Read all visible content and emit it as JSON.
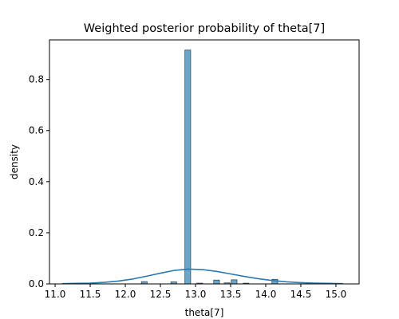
{
  "chart_data": {
    "type": "bar",
    "title": "Weighted posterior probability of theta[7]",
    "xlabel": "theta[7]",
    "ylabel": "density",
    "xlim": [
      10.92,
      15.33
    ],
    "ylim": [
      0,
      0.955
    ],
    "xticks": [
      "11.0",
      "11.5",
      "12.0",
      "12.5",
      "13.0",
      "13.5",
      "14.0",
      "14.5",
      "15.0"
    ],
    "yticks": [
      "0.0",
      "0.2",
      "0.4",
      "0.6",
      "0.8"
    ],
    "grid": false,
    "bar_color": "#6ea6c9",
    "bar_edge_color": "#1f3b4d",
    "line_color": "#2a7ab0",
    "bin_width": 0.082,
    "bars": [
      {
        "x": 12.27,
        "value": 0.009
      },
      {
        "x": 12.69,
        "value": 0.008
      },
      {
        "x": 12.89,
        "value": 0.915
      },
      {
        "x": 13.06,
        "value": 0.003
      },
      {
        "x": 13.3,
        "value": 0.015
      },
      {
        "x": 13.45,
        "value": 0.004
      },
      {
        "x": 13.55,
        "value": 0.016
      },
      {
        "x": 13.72,
        "value": 0.003
      },
      {
        "x": 14.13,
        "value": 0.018
      }
    ],
    "kde": {
      "x": [
        11.1,
        11.3,
        11.5,
        11.7,
        11.9,
        12.1,
        12.3,
        12.5,
        12.7,
        12.9,
        13.1,
        13.3,
        13.5,
        13.7,
        13.9,
        14.1,
        14.3,
        14.5,
        14.7,
        14.9,
        15.1
      ],
      "y": [
        0.001,
        0.002,
        0.003,
        0.006,
        0.011,
        0.019,
        0.03,
        0.042,
        0.053,
        0.058,
        0.056,
        0.049,
        0.039,
        0.029,
        0.02,
        0.013,
        0.008,
        0.005,
        0.003,
        0.002,
        0.001
      ]
    }
  }
}
